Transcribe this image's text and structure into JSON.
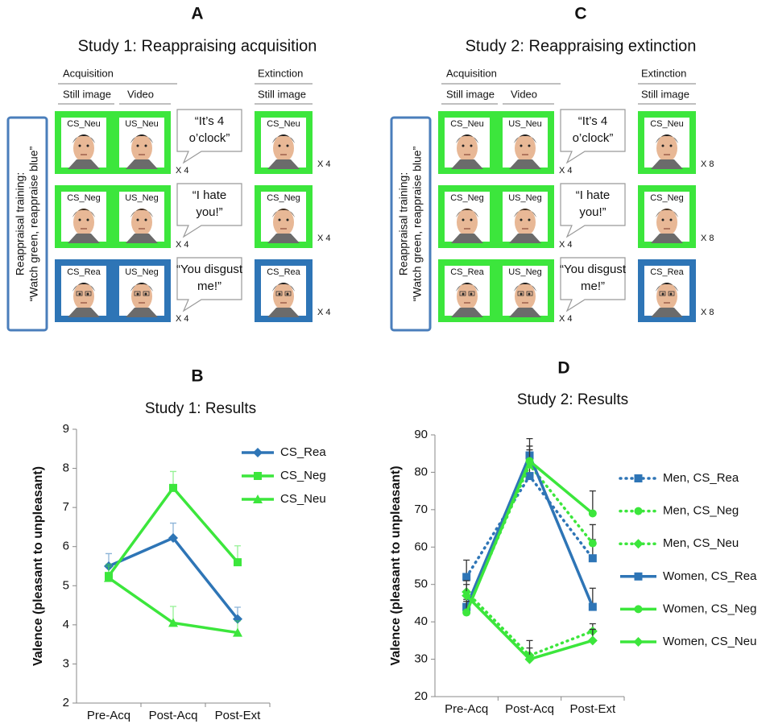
{
  "panels": [
    {
      "letter": "A",
      "title": "Study 1: Reappraising acquisition",
      "acquisition": "Acquisition",
      "extinction": "Extinction",
      "still_image": "Still image",
      "video": "Video",
      "ext_still_image": "Still image",
      "training": [
        "Reappraisal training:",
        "“Watch green, reappraise blue”"
      ],
      "rows": [
        {
          "cs": "CS_Neu",
          "us": "US_Neu",
          "speech": [
            "“It’s 4",
            "o’clock”"
          ],
          "acq_repeat": "X 4",
          "ext_label": "CS_Neu",
          "ext_repeat": "X 4",
          "acq_color": "#3ce63c",
          "ext_color": "#3ce63c"
        },
        {
          "cs": "CS_Neg",
          "us": "US_Neg",
          "speech": [
            "“I hate",
            "you!”"
          ],
          "acq_repeat": "X 4",
          "ext_label": "CS_Neg",
          "ext_repeat": "X 4",
          "acq_color": "#3ce63c",
          "ext_color": "#3ce63c"
        },
        {
          "cs": "CS_Rea",
          "us": "US_Neg",
          "speech": [
            "“You disgust",
            "me!”"
          ],
          "acq_repeat": "X 4",
          "ext_label": "CS_Rea",
          "ext_repeat": "X 4",
          "acq_color": "#2e75b6",
          "ext_color": "#2e75b6"
        }
      ]
    },
    {
      "letter": "C",
      "title": "Study 2: Reappraising extinction",
      "acquisition": "Acquisition",
      "extinction": "Extinction",
      "still_image": "Still image",
      "video": "Video",
      "ext_still_image": "Still image",
      "training": [
        "Reappraisal training:",
        "“Watch green, reappraise blue”"
      ],
      "rows": [
        {
          "cs": "CS_Neu",
          "us": "US_Neu",
          "speech": [
            "“It’s 4",
            "o’clock”"
          ],
          "acq_repeat": "X 4",
          "ext_label": "CS_Neu",
          "ext_repeat": "X 8",
          "acq_color": "#3ce63c",
          "ext_color": "#3ce63c"
        },
        {
          "cs": "CS_Neg",
          "us": "US_Neg",
          "speech": [
            "“I hate",
            "you!”"
          ],
          "acq_repeat": "X 4",
          "ext_label": "CS_Neg",
          "ext_repeat": "X 8",
          "acq_color": "#3ce63c",
          "ext_color": "#3ce63c"
        },
        {
          "cs": "CS_Rea",
          "us": "US_Neg",
          "speech": [
            "“You disgust",
            "me!”"
          ],
          "acq_repeat": "X 4",
          "ext_label": "CS_Rea",
          "ext_repeat": "X 8",
          "acq_color": "#3ce63c",
          "ext_color": "#2e75b6"
        }
      ]
    }
  ],
  "chart_data": [
    {
      "type": "line",
      "letter": "B",
      "title": "Study 1: Results",
      "ylabel": "Valence (pleasant to unpleasant)",
      "categories": [
        "Pre-Acq",
        "Post-Acq",
        "Post-Ext"
      ],
      "ylim": [
        2,
        9
      ],
      "yticks": [
        2,
        3,
        4,
        5,
        6,
        7,
        8,
        9
      ],
      "series": [
        {
          "name": "CS_Rea",
          "color": "#2e75b6",
          "dash": "solid",
          "marker": "diamond",
          "values": [
            5.5,
            6.22,
            4.15
          ],
          "errors": [
            0.32,
            0.38,
            0.3
          ]
        },
        {
          "name": "CS_Neg",
          "color": "#3ce63c",
          "dash": "solid",
          "marker": "square",
          "values": [
            5.25,
            7.5,
            5.6
          ],
          "errors": [
            0.3,
            0.42,
            0.42
          ]
        },
        {
          "name": "CS_Neu",
          "color": "#3ce63c",
          "dash": "solid",
          "marker": "triangle",
          "values": [
            5.2,
            4.05,
            3.8
          ],
          "errors": [
            0.3,
            0.42,
            0.3
          ]
        }
      ]
    },
    {
      "type": "line",
      "letter": "D",
      "title": "Study 2: Results",
      "ylabel": "Valence (pleasant to unpleasant)",
      "categories": [
        "Pre-Acq",
        "Post-Acq",
        "Post-Ext"
      ],
      "ylim": [
        20,
        90
      ],
      "yticks": [
        20,
        30,
        40,
        50,
        60,
        70,
        80,
        90
      ],
      "error_color": "#333333",
      "series": [
        {
          "name": "Men, CS_Rea",
          "color": "#2e75b6",
          "dash": "dotted",
          "marker": "square",
          "values": [
            52,
            79,
            57
          ],
          "errors": [
            4.5,
            4,
            5
          ]
        },
        {
          "name": "Men, CS_Neg",
          "color": "#3ce63c",
          "dash": "dotted",
          "marker": "circle",
          "values": [
            43,
            82,
            61
          ],
          "errors": [
            3,
            4,
            5
          ]
        },
        {
          "name": "Men, CS_Neu",
          "color": "#3ce63c",
          "dash": "dotted",
          "marker": "diamond",
          "values": [
            48,
            31,
            37.5
          ],
          "errors": [
            3,
            4,
            2
          ]
        },
        {
          "name": "Women, CS_Rea",
          "color": "#2e75b6",
          "dash": "solid",
          "marker": "square",
          "values": [
            44,
            84.5,
            44
          ],
          "errors": [
            3,
            4.5,
            5
          ]
        },
        {
          "name": "Women, CS_Neg",
          "color": "#3ce63c",
          "dash": "solid",
          "marker": "circle",
          "values": [
            42.5,
            83,
            69
          ],
          "errors": [
            3,
            4,
            6
          ]
        },
        {
          "name": "Women, CS_Neu",
          "color": "#3ce63c",
          "dash": "solid",
          "marker": "diamond",
          "values": [
            47,
            30,
            35
          ],
          "errors": [
            3,
            3,
            3
          ]
        }
      ]
    }
  ]
}
